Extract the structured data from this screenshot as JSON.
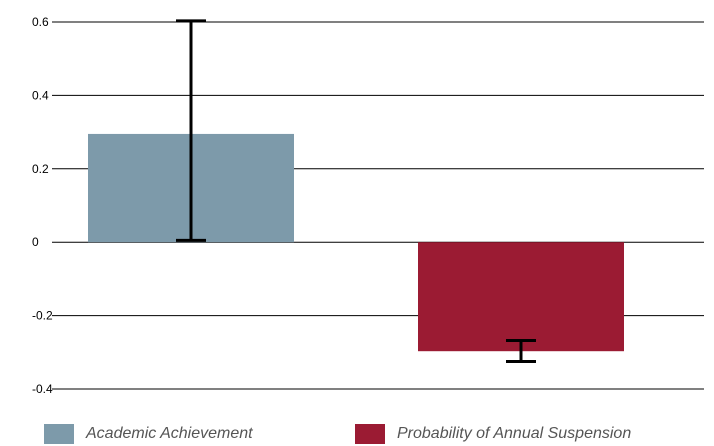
{
  "chart_data": {
    "type": "bar",
    "categories": [
      "Academic Achievement",
      "Probability of Annual Suspension"
    ],
    "values": [
      0.295,
      -0.297
    ],
    "error_bars": [
      {
        "low": 0.005,
        "high": 0.603
      },
      {
        "low": -0.325,
        "high": -0.268
      }
    ],
    "ylim": [
      -0.4,
      0.6
    ],
    "yticks": [
      0.6,
      0.4,
      0.2,
      0,
      -0.2,
      -0.4
    ],
    "ytick_labels": [
      "0.6",
      "0.4",
      "0.2",
      "0",
      "-0.2",
      "-0.4"
    ],
    "grid": true,
    "legend": {
      "placement": "bottom",
      "entries": [
        {
          "label": "Academic Achievement",
          "color": "#7d9aaa"
        },
        {
          "label": "Probability of Annual Suspension",
          "color": "#9b1b33"
        }
      ]
    },
    "colors": [
      "#7d9aaa",
      "#9b1b33"
    ]
  }
}
